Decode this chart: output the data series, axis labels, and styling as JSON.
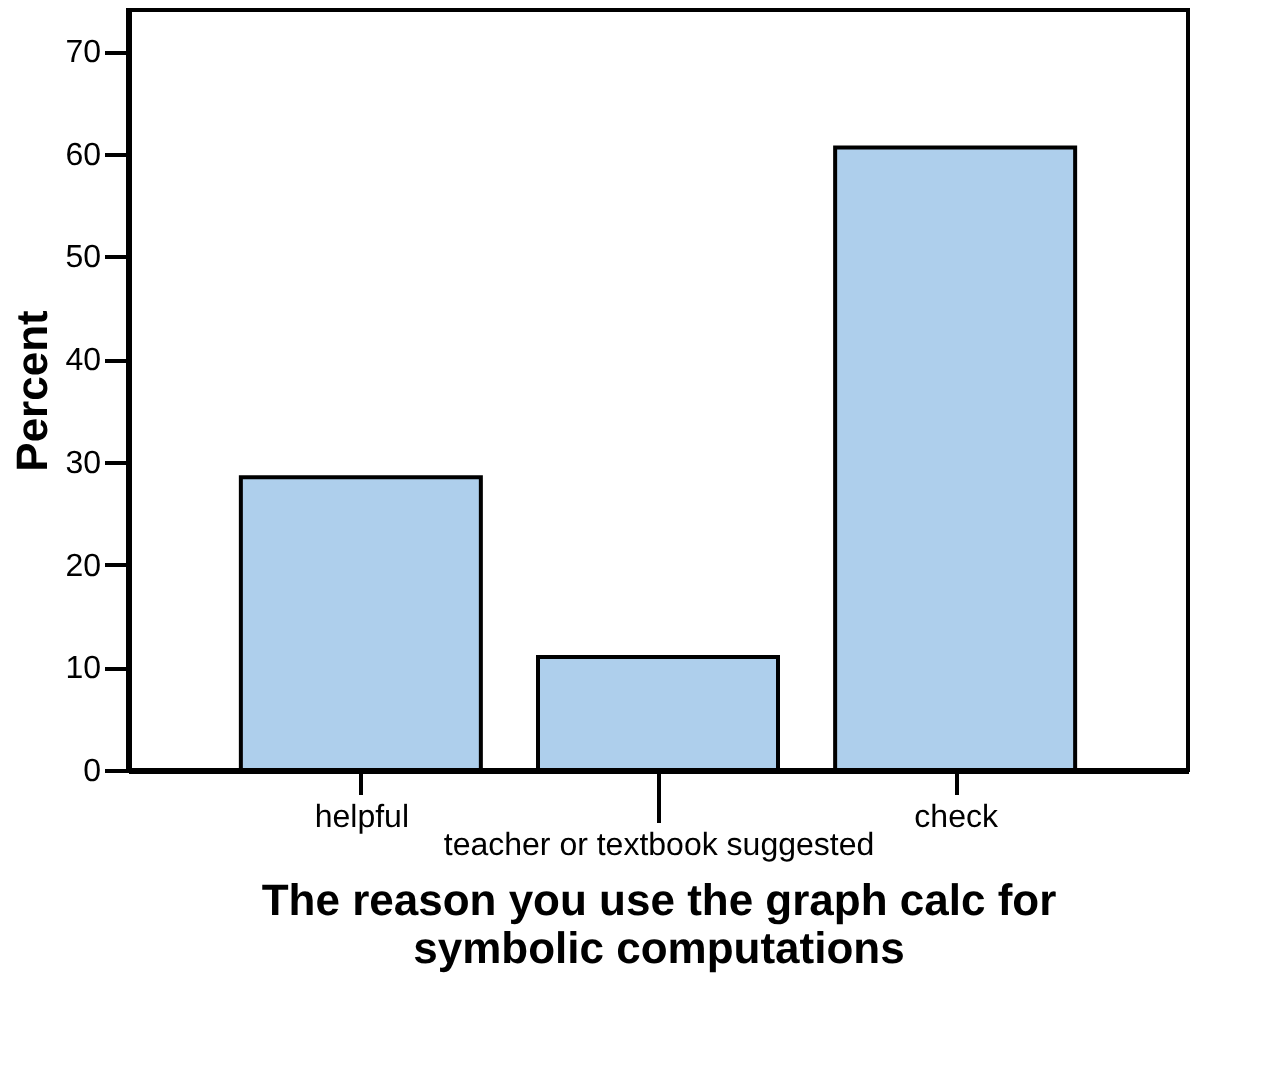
{
  "chart_data": {
    "type": "bar",
    "categories": [
      "helpful",
      "teacher or textbook suggested",
      "check"
    ],
    "values": [
      28.5,
      11.0,
      60.6
    ],
    "color": "#aecfec",
    "xlabel": "The reason you use the graph calc for symbolic computations",
    "ylabel": "Percent",
    "ylim": [
      0,
      74
    ],
    "yticks": [
      0,
      10,
      20,
      30,
      40,
      50,
      60,
      70
    ],
    "grid": false
  }
}
